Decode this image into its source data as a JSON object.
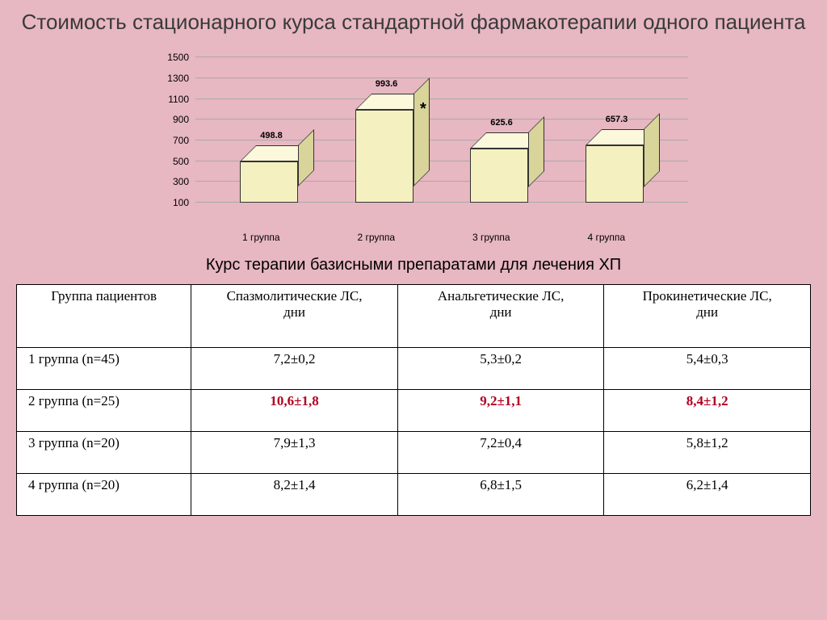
{
  "page": {
    "background_color": "#e7b7c2"
  },
  "title": "Стоимость стационарного курса стандартной фармакотерапии одного пациента",
  "subtitle": "Курс терапии базисными препаратами для лечения ХП",
  "chart": {
    "type": "bar-3d",
    "ylim": [
      100,
      1500
    ],
    "ytick_step": 200,
    "yticks": [
      100,
      300,
      500,
      700,
      900,
      1100,
      1300,
      1500
    ],
    "categories": [
      "1 группа",
      "2 группа",
      "3 группа",
      "4 группа"
    ],
    "values": [
      498.8,
      993.6,
      625.6,
      657.3
    ],
    "value_labels": [
      "498.8",
      "993.6",
      "625.6",
      "657.3"
    ],
    "star_index": 1,
    "bar_front_color": "#f4f0c0",
    "bar_top_color": "#fbf8dc",
    "bar_side_color": "#d8d49a",
    "bar_border_color": "#333333",
    "grid_color": "#aaaaaa",
    "label_fontsize": 11,
    "tick_fontsize": 12
  },
  "table": {
    "columns": [
      "Группа пациентов",
      "Спазмолитические ЛС, дни",
      "Анальгетические ЛС, дни",
      "Прокинетические ЛС, дни"
    ],
    "col_widths_pct": [
      22,
      26,
      26,
      26
    ],
    "rows": [
      {
        "label": "1 группа (n=45)",
        "cells": [
          "7,2±0,2",
          "5,3±0,2",
          "5,4±0,3"
        ],
        "highlight": false
      },
      {
        "label": "2 группа (n=25)",
        "cells": [
          "10,6±1,8",
          "9,2±1,1",
          "8,4±1,2"
        ],
        "highlight": true
      },
      {
        "label": "3 группа (n=20)",
        "cells": [
          "7,9±1,3",
          "7,2±0,4",
          "5,8±1,2"
        ],
        "highlight": false
      },
      {
        "label": "4 группа (n=20)",
        "cells": [
          "8,2±1,4",
          "6,8±1,5",
          "6,2±1,4"
        ],
        "highlight": false
      }
    ],
    "highlight_color": "#b00020",
    "cell_background": "#ffffff",
    "border_color": "#000000",
    "header_fontsize": 17,
    "cell_fontsize": 17
  }
}
